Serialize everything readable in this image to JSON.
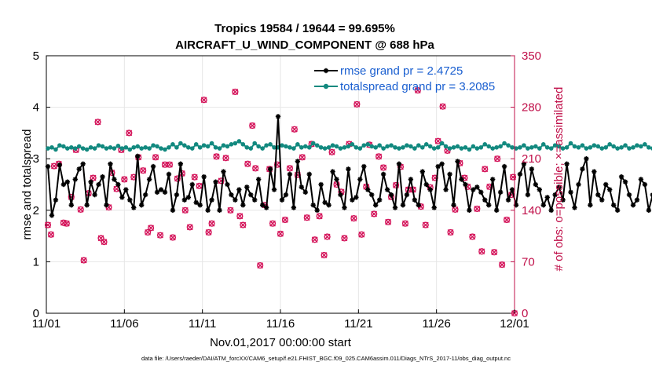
{
  "chart_data": {
    "type": "line",
    "title_line1": "Tropics 19584 / 19644 = 99.695%",
    "title_line2": "AIRCRAFT_U_WIND_COMPONENT @ 688 hPa",
    "xlabel": "Nov.01,2017 00:00:00 start",
    "ylabel_left": "rmse and totalspread",
    "ylabel_right": "# of obs: o=possible; ×=assimilated",
    "x_range_days": [
      0,
      30
    ],
    "ylim_left": [
      0,
      5
    ],
    "ylim_right": [
      0,
      350
    ],
    "x_ticks": [
      {
        "day": 0,
        "label": "11/01"
      },
      {
        "day": 5,
        "label": "11/06"
      },
      {
        "day": 10,
        "label": "11/11"
      },
      {
        "day": 15,
        "label": "11/16"
      },
      {
        "day": 20,
        "label": "11/21"
      },
      {
        "day": 25,
        "label": "11/26"
      },
      {
        "day": 30,
        "label": "12/01"
      }
    ],
    "y_ticks_left": [
      "0",
      "1",
      "2",
      "3",
      "4",
      "5"
    ],
    "y_ticks_right": [
      "0",
      "70",
      "140",
      "210",
      "280",
      "350"
    ],
    "time_step_days": 0.25,
    "series": [
      {
        "name": "rmse grand pr = 2.4725",
        "color": "#000000",
        "marker": "asterisk",
        "values": [
          2.85,
          1.9,
          2.2,
          2.88,
          2.5,
          2.55,
          2.1,
          2.6,
          2.8,
          2.9,
          2.1,
          2.55,
          2.3,
          2.5,
          2.65,
          2.1,
          2.9,
          2.6,
          2.5,
          2.25,
          2.4,
          2.2,
          2.05,
          3.05,
          2.1,
          2.3,
          2.6,
          2.85,
          2.35,
          2.4,
          2.35,
          2.7,
          2.0,
          2.3,
          2.9,
          2.2,
          2.25,
          2.5,
          2.15,
          2.1,
          2.65,
          2.0,
          2.2,
          2.55,
          2.0,
          2.75,
          2.5,
          2.3,
          2.2,
          2.4,
          2.1,
          2.45,
          2.3,
          2.2,
          2.6,
          2.1,
          2.05,
          2.8,
          2.4,
          3.82,
          2.2,
          2.3,
          2.7,
          2.05,
          2.95,
          2.45,
          2.35,
          2.7,
          2.1,
          2.0,
          2.5,
          2.15,
          2.1,
          2.75,
          2.6,
          2.3,
          2.05,
          2.8,
          2.2,
          2.25,
          2.6,
          2.85,
          2.4,
          2.3,
          2.1,
          2.2,
          2.7,
          2.4,
          2.3,
          2.05,
          2.9,
          2.1,
          2.3,
          2.6,
          2.2,
          2.1,
          2.75,
          2.5,
          2.4,
          2.05,
          2.85,
          2.9,
          2.4,
          2.7,
          2.1,
          2.95,
          2.6,
          2.5,
          2.0,
          2.4,
          2.45,
          2.35,
          2.2,
          2.1,
          2.6,
          2.0,
          2.35,
          2.85,
          2.2,
          2.4,
          2.1,
          2.7,
          2.9,
          2.3,
          2.8,
          2.5,
          2.4,
          2.1,
          2.25,
          2.0,
          2.3,
          2.45,
          2.2,
          2.9,
          2.35,
          2.05,
          2.5,
          2.8,
          3.0,
          2.1,
          2.75,
          2.3,
          2.2,
          2.5,
          2.4,
          2.1,
          2.0,
          2.65,
          2.55,
          2.3,
          2.1,
          2.2,
          2.6,
          2.5,
          2.0,
          2.3,
          2.4,
          2.1,
          2.0,
          2.4,
          2.0,
          2.9,
          2.6,
          2.6,
          2.55,
          2.55
        ]
      },
      {
        "name": "totalspread grand pr = 3.2085",
        "color": "#12897f",
        "marker": "circle",
        "values": [
          3.2,
          3.22,
          3.18,
          3.26,
          3.24,
          3.2,
          3.22,
          3.2,
          3.24,
          3.2,
          3.18,
          3.22,
          3.2,
          3.26,
          3.24,
          3.2,
          3.22,
          3.2,
          3.25,
          3.2,
          3.22,
          3.18,
          3.22,
          3.24,
          3.2,
          3.22,
          3.2,
          3.26,
          3.24,
          3.2,
          3.18,
          3.22,
          3.28,
          3.22,
          3.3,
          3.26,
          3.22,
          3.2,
          3.28,
          3.22,
          3.26,
          3.24,
          3.3,
          3.22,
          3.2,
          3.26,
          3.24,
          3.28,
          3.3,
          3.34,
          3.28,
          3.22,
          3.2,
          3.3,
          3.24,
          3.2,
          3.26,
          3.28,
          3.22,
          3.22,
          3.26,
          3.24,
          3.22,
          3.2,
          3.28,
          3.22,
          3.24,
          3.22,
          3.3,
          3.26,
          3.22,
          3.2,
          3.22,
          3.26,
          3.24,
          3.2,
          3.22,
          3.24,
          3.28,
          3.22,
          3.2,
          3.26,
          3.28,
          3.24,
          3.22,
          3.26,
          3.2,
          3.24,
          3.26,
          3.22,
          3.2,
          3.22,
          3.26,
          3.24,
          3.2,
          3.26,
          3.22,
          3.28,
          3.24,
          3.2,
          3.22,
          3.3,
          3.24,
          3.2,
          3.22,
          3.24,
          3.2,
          3.22,
          3.18,
          3.24,
          3.2,
          3.22,
          3.28,
          3.24,
          3.2,
          3.22,
          3.24,
          3.3,
          3.26,
          3.22,
          3.2,
          3.22,
          3.26,
          3.2,
          3.22,
          3.24,
          3.2,
          3.28,
          3.22,
          3.2,
          3.26,
          3.24,
          3.2,
          3.22,
          3.3,
          3.24,
          3.22,
          3.26,
          3.2,
          3.22,
          3.26,
          3.24,
          3.2,
          3.22,
          3.28,
          3.24,
          3.2,
          3.22,
          3.26,
          3.2,
          3.22,
          3.26,
          3.24,
          3.28,
          3.22,
          3.2,
          3.24,
          3.32,
          3.28,
          3.36,
          3.3,
          3.26,
          3.22,
          3.2
        ]
      }
    ],
    "obs_counts": {
      "name": "# of obs",
      "color": "#d4145a",
      "points": [
        {
          "day": 0.1,
          "n": 120
        },
        {
          "day": 0.3,
          "n": 107
        },
        {
          "day": 0.5,
          "n": 200
        },
        {
          "day": 0.8,
          "n": 203
        },
        {
          "day": 1.1,
          "n": 123
        },
        {
          "day": 1.3,
          "n": 122
        },
        {
          "day": 1.6,
          "n": 158
        },
        {
          "day": 1.9,
          "n": 222
        },
        {
          "day": 2.2,
          "n": 141
        },
        {
          "day": 2.4,
          "n": 72
        },
        {
          "day": 2.7,
          "n": 163
        },
        {
          "day": 3.0,
          "n": 184
        },
        {
          "day": 3.3,
          "n": 260
        },
        {
          "day": 3.5,
          "n": 102
        },
        {
          "day": 3.7,
          "n": 97
        },
        {
          "day": 4.0,
          "n": 144
        },
        {
          "day": 4.2,
          "n": 191
        },
        {
          "day": 4.5,
          "n": 169
        },
        {
          "day": 4.8,
          "n": 222
        },
        {
          "day": 5.0,
          "n": 182
        },
        {
          "day": 5.3,
          "n": 245
        },
        {
          "day": 5.6,
          "n": 185
        },
        {
          "day": 5.9,
          "n": 212
        },
        {
          "day": 6.2,
          "n": 194
        },
        {
          "day": 6.5,
          "n": 110
        },
        {
          "day": 6.7,
          "n": 116
        },
        {
          "day": 7.0,
          "n": 212
        },
        {
          "day": 7.3,
          "n": 106
        },
        {
          "day": 7.6,
          "n": 202
        },
        {
          "day": 7.9,
          "n": 202
        },
        {
          "day": 8.1,
          "n": 103
        },
        {
          "day": 8.4,
          "n": 183
        },
        {
          "day": 8.7,
          "n": 190
        },
        {
          "day": 8.9,
          "n": 140
        },
        {
          "day": 9.2,
          "n": 117
        },
        {
          "day": 9.5,
          "n": 185
        },
        {
          "day": 9.8,
          "n": 173
        },
        {
          "day": 10.1,
          "n": 290
        },
        {
          "day": 10.4,
          "n": 110
        },
        {
          "day": 10.6,
          "n": 122
        },
        {
          "day": 10.9,
          "n": 213
        },
        {
          "day": 11.2,
          "n": 180
        },
        {
          "day": 11.5,
          "n": 211
        },
        {
          "day": 11.8,
          "n": 140
        },
        {
          "day": 12.1,
          "n": 301
        },
        {
          "day": 12.4,
          "n": 132
        },
        {
          "day": 12.6,
          "n": 120
        },
        {
          "day": 12.9,
          "n": 203
        },
        {
          "day": 13.2,
          "n": 255
        },
        {
          "day": 13.4,
          "n": 197
        },
        {
          "day": 13.7,
          "n": 65
        },
        {
          "day": 14.0,
          "n": 147
        },
        {
          "day": 14.3,
          "n": 196
        },
        {
          "day": 14.5,
          "n": 122
        },
        {
          "day": 14.8,
          "n": 202
        },
        {
          "day": 15.0,
          "n": 108
        },
        {
          "day": 15.3,
          "n": 127
        },
        {
          "day": 15.6,
          "n": 197
        },
        {
          "day": 15.9,
          "n": 250
        },
        {
          "day": 16.1,
          "n": 188
        },
        {
          "day": 16.4,
          "n": 212
        },
        {
          "day": 16.7,
          "n": 130
        },
        {
          "day": 17.0,
          "n": 230
        },
        {
          "day": 17.2,
          "n": 100
        },
        {
          "day": 17.5,
          "n": 132
        },
        {
          "day": 17.8,
          "n": 79
        },
        {
          "day": 18.0,
          "n": 104
        },
        {
          "day": 18.3,
          "n": 219
        },
        {
          "day": 18.6,
          "n": 175
        },
        {
          "day": 18.9,
          "n": 165
        },
        {
          "day": 19.1,
          "n": 102
        },
        {
          "day": 19.4,
          "n": 230
        },
        {
          "day": 19.7,
          "n": 129
        },
        {
          "day": 19.9,
          "n": 284
        },
        {
          "day": 20.2,
          "n": 107
        },
        {
          "day": 20.5,
          "n": 172
        },
        {
          "day": 20.7,
          "n": 229
        },
        {
          "day": 21.0,
          "n": 135
        },
        {
          "day": 21.3,
          "n": 213
        },
        {
          "day": 21.6,
          "n": 198
        },
        {
          "day": 21.9,
          "n": 124
        },
        {
          "day": 22.1,
          "n": 158
        },
        {
          "day": 22.4,
          "n": 174
        },
        {
          "day": 22.7,
          "n": 199
        },
        {
          "day": 23.0,
          "n": 122
        },
        {
          "day": 23.2,
          "n": 168
        },
        {
          "day": 23.5,
          "n": 168
        },
        {
          "day": 23.8,
          "n": 303
        },
        {
          "day": 24.0,
          "n": 145
        },
        {
          "day": 24.3,
          "n": 120
        },
        {
          "day": 24.6,
          "n": 171
        },
        {
          "day": 24.9,
          "n": 184
        },
        {
          "day": 25.1,
          "n": 234
        },
        {
          "day": 25.4,
          "n": 281
        },
        {
          "day": 25.7,
          "n": 221
        },
        {
          "day": 25.9,
          "n": 110
        },
        {
          "day": 26.2,
          "n": 141
        },
        {
          "day": 26.5,
          "n": 204
        },
        {
          "day": 26.8,
          "n": 184
        },
        {
          "day": 27.0,
          "n": 172
        },
        {
          "day": 27.3,
          "n": 104
        },
        {
          "day": 27.6,
          "n": 142
        },
        {
          "day": 27.9,
          "n": 84
        },
        {
          "day": 28.1,
          "n": 196
        },
        {
          "day": 28.4,
          "n": 172
        },
        {
          "day": 28.7,
          "n": 83
        },
        {
          "day": 28.9,
          "n": 210
        },
        {
          "day": 29.2,
          "n": 66
        },
        {
          "day": 29.5,
          "n": 127
        },
        {
          "day": 29.8,
          "n": 161
        },
        {
          "day": 29.9,
          "n": 185
        },
        {
          "day": 30.0,
          "n": 0
        }
      ]
    }
  },
  "footer": "data file: /Users/raeder/DAI/ATM_forcXX/CAM6_setup/f.e21.FHIST_BGC.f09_025.CAM6assim.011/Diags_NTrS_2017-11/obs_diag_output.nc"
}
